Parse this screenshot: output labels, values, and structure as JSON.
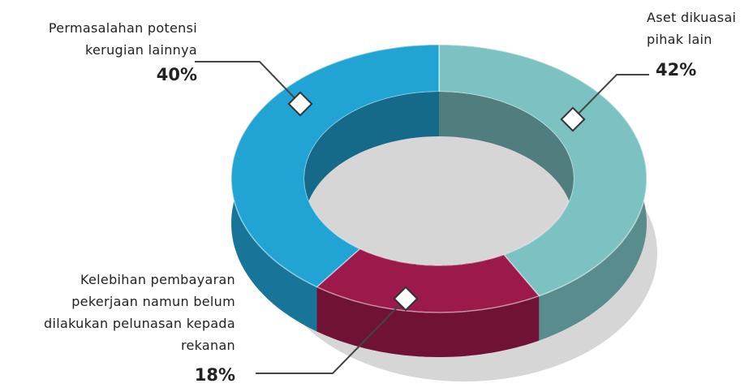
{
  "chart_data": {
    "type": "donut3d",
    "categories": [
      "Aset dikuasai pihak lain",
      "Kelebihan pembayaran pekerjaan namun belum dilakukan pelunasan kepada rekanan",
      "Permasalahan potensi kerugian lainnya"
    ],
    "values": [
      42,
      18,
      40
    ],
    "value_labels": [
      "42%",
      "18%",
      "40%"
    ],
    "colors": [
      "#7cc2c3",
      "#9b1a4b",
      "#21a3d4"
    ]
  }
}
